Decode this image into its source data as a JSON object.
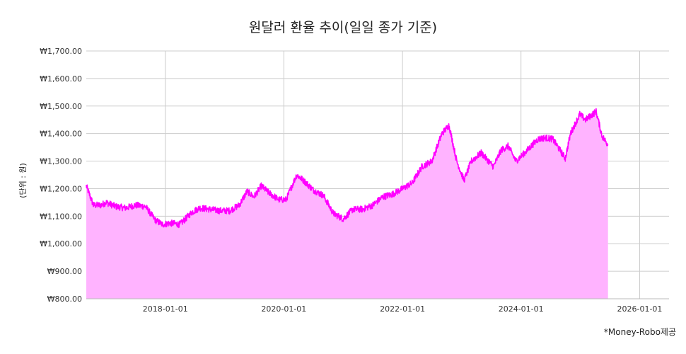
{
  "chart_data": {
    "type": "area",
    "title": "원달러 환율 추이(일일 종가 기준)",
    "ylabel": "(단위 : 원)",
    "xlabel": "",
    "source": "*Money-Robo제공",
    "ylim": [
      800,
      1700
    ],
    "xlim": [
      "2016-09-01",
      "2026-07-01"
    ],
    "yticks": [
      800,
      900,
      1000,
      1100,
      1200,
      1300,
      1400,
      1500,
      1600,
      1700
    ],
    "ytick_labels": [
      "₩800.00",
      "₩900.00",
      "₩1,000.00",
      "₩1,100.00",
      "₩1,200.00",
      "₩1,300.00",
      "₩1,400.00",
      "₩1,500.00",
      "₩1,600.00",
      "₩1,700.00"
    ],
    "xticks": [
      "2018-01-01",
      "2020-01-01",
      "2022-01-01",
      "2024-01-01",
      "2026-01-01"
    ],
    "grid": true,
    "colors": {
      "line": "#ff00ff",
      "fill": "#ffb3ff",
      "grid": "#cccccc"
    },
    "series": [
      {
        "x": [
          "2016-09-01",
          "2016-10-15",
          "2016-12-01",
          "2017-01-01",
          "2017-03-01",
          "2017-05-01",
          "2017-07-01",
          "2017-09-01",
          "2017-11-01",
          "2017-12-15",
          "2018-02-01",
          "2018-04-01",
          "2018-06-15",
          "2018-08-01",
          "2018-10-01",
          "2018-12-01",
          "2019-02-01",
          "2019-04-01",
          "2019-05-20",
          "2019-07-01",
          "2019-08-15",
          "2019-10-01",
          "2019-12-01",
          "2020-01-15",
          "2020-03-20",
          "2020-05-01",
          "2020-07-01",
          "2020-09-01",
          "2020-11-01",
          "2021-01-01",
          "2021-03-01",
          "2021-05-01",
          "2021-07-01",
          "2021-09-01",
          "2021-11-01",
          "2022-01-01",
          "2022-03-01",
          "2022-05-01",
          "2022-07-01",
          "2022-09-01",
          "2022-10-15",
          "2022-12-01",
          "2023-01-15",
          "2023-03-01",
          "2023-05-01",
          "2023-07-15",
          "2023-09-01",
          "2023-10-15",
          "2023-12-01",
          "2024-02-01",
          "2024-04-15",
          "2024-06-01",
          "2024-07-15",
          "2024-09-30",
          "2024-11-01",
          "2024-12-28",
          "2025-02-01",
          "2025-04-08",
          "2025-05-15",
          "2025-06-20"
        ],
        "values": [
          1210,
          1140,
          1140,
          1150,
          1135,
          1130,
          1140,
          1135,
          1085,
          1070,
          1075,
          1070,
          1115,
          1130,
          1125,
          1120,
          1120,
          1140,
          1190,
          1170,
          1210,
          1185,
          1160,
          1160,
          1250,
          1230,
          1195,
          1175,
          1110,
          1090,
          1125,
          1125,
          1140,
          1170,
          1180,
          1200,
          1220,
          1280,
          1300,
          1400,
          1430,
          1300,
          1230,
          1300,
          1330,
          1280,
          1340,
          1355,
          1300,
          1335,
          1380,
          1385,
          1380,
          1310,
          1400,
          1470,
          1450,
          1480,
          1390,
          1360
        ]
      }
    ]
  }
}
